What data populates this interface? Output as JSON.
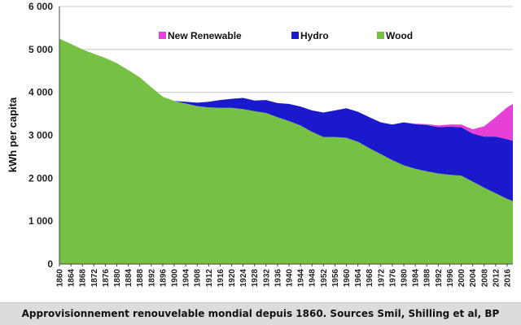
{
  "chart_data": {
    "type": "area",
    "stacked": true,
    "ylabel": "kWh per capita",
    "ylim": [
      0,
      6000
    ],
    "yticks": [
      0,
      1000,
      2000,
      3000,
      4000,
      5000,
      6000
    ],
    "ytick_labels": [
      "0",
      "1 000",
      "2 000",
      "3 000",
      "4 000",
      "5 000",
      "6 000"
    ],
    "xlim": [
      1860,
      2018
    ],
    "xticks": [
      1860,
      1864,
      1868,
      1872,
      1876,
      1880,
      1884,
      1888,
      1892,
      1896,
      1900,
      1904,
      1908,
      1912,
      1916,
      1920,
      1924,
      1928,
      1932,
      1936,
      1940,
      1944,
      1948,
      1952,
      1956,
      1960,
      1964,
      1968,
      1972,
      1976,
      1980,
      1984,
      1988,
      1992,
      1996,
      2000,
      2004,
      2008,
      2012,
      2016
    ],
    "grid": "horizontal",
    "legend_position": "top",
    "x": [
      1860,
      1864,
      1868,
      1872,
      1876,
      1880,
      1884,
      1888,
      1892,
      1896,
      1900,
      1904,
      1908,
      1912,
      1916,
      1920,
      1924,
      1928,
      1932,
      1936,
      1940,
      1944,
      1948,
      1952,
      1956,
      1960,
      1964,
      1968,
      1972,
      1976,
      1980,
      1984,
      1988,
      1992,
      1996,
      2000,
      2004,
      2008,
      2012,
      2016,
      2018
    ],
    "series": [
      {
        "name": "Wood",
        "color": "#76c043",
        "values": [
          5250,
          5130,
          5000,
          4900,
          4800,
          4680,
          4520,
          4350,
          4120,
          3900,
          3800,
          3740,
          3680,
          3650,
          3640,
          3640,
          3610,
          3560,
          3520,
          3420,
          3330,
          3230,
          3080,
          2960,
          2960,
          2940,
          2850,
          2700,
          2560,
          2420,
          2300,
          2220,
          2160,
          2110,
          2080,
          2060,
          1920,
          1780,
          1650,
          1520,
          1470
        ]
      },
      {
        "name": "Hydro",
        "color": "#1a1acc",
        "values": [
          0,
          0,
          0,
          0,
          0,
          0,
          0,
          0,
          0,
          0,
          0,
          40,
          80,
          130,
          180,
          210,
          260,
          250,
          300,
          330,
          400,
          440,
          500,
          570,
          620,
          690,
          700,
          720,
          740,
          830,
          1000,
          1040,
          1080,
          1080,
          1120,
          1130,
          1120,
          1190,
          1320,
          1390,
          1400
        ]
      },
      {
        "name": "New Renewable",
        "color": "#e640d8",
        "values": [
          0,
          0,
          0,
          0,
          0,
          0,
          0,
          0,
          0,
          0,
          0,
          0,
          0,
          0,
          0,
          0,
          0,
          0,
          0,
          0,
          0,
          0,
          0,
          0,
          0,
          0,
          0,
          0,
          0,
          0,
          0,
          10,
          20,
          40,
          50,
          60,
          100,
          240,
          450,
          740,
          860
        ]
      }
    ]
  },
  "legend": {
    "new_renewable": "New Renewable",
    "hydro": "Hydro",
    "wood": "Wood"
  },
  "caption": {
    "text": "Approvisionnement renouvelable mondial depuis 1860. Sources Smil, Shilling et al, BP"
  }
}
